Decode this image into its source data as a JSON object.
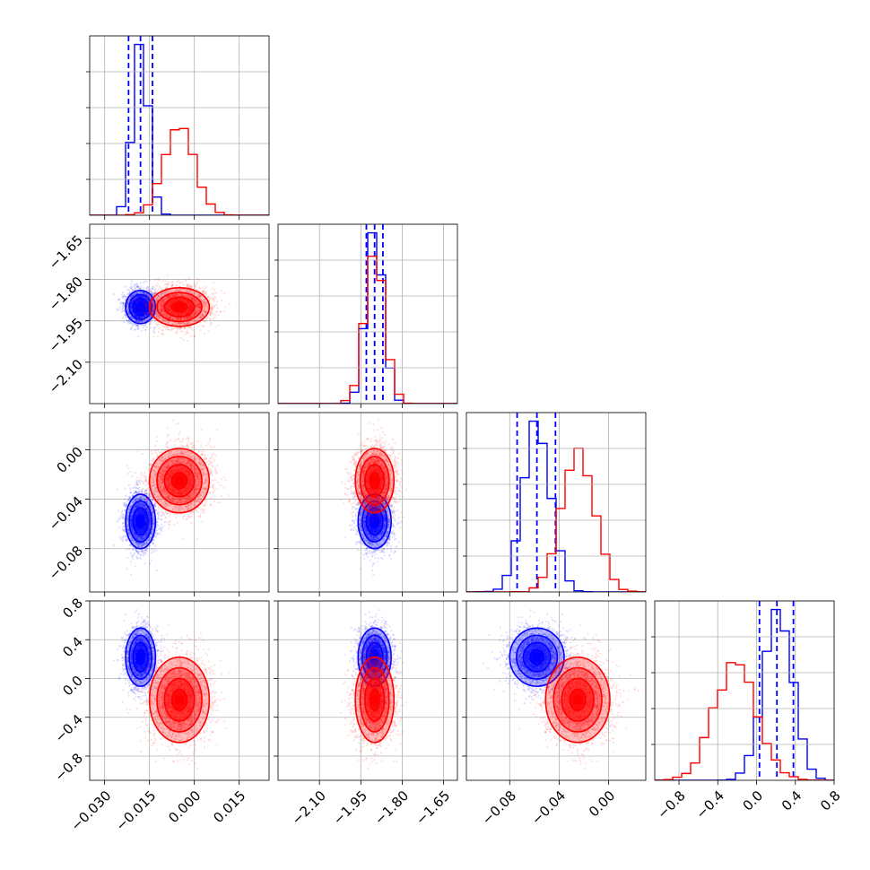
{
  "chart_data": {
    "type": "corner",
    "grid": true,
    "parameters": [
      {
        "range": [
          -0.035,
          0.025
        ],
        "ticks": [
          -0.03,
          -0.015,
          0.0,
          0.015
        ],
        "tick_labels": [
          "−0.030",
          "−0.015",
          "0.000",
          "0.015"
        ]
      },
      {
        "range": [
          -2.25,
          -1.6
        ],
        "ticks": [
          -2.1,
          -1.95,
          -1.8,
          -1.65
        ],
        "tick_labels": [
          "−2.10",
          "−1.95",
          "−1.80",
          "−1.65"
        ]
      },
      {
        "range": [
          -0.115,
          0.03
        ],
        "ticks": [
          -0.08,
          -0.04,
          0.0
        ],
        "tick_labels": [
          "−0.08",
          "−0.04",
          "0.00"
        ]
      },
      {
        "range": [
          -1.05,
          0.8
        ],
        "ticks": [
          -0.8,
          -0.4,
          0.0,
          0.4,
          0.8
        ],
        "tick_labels": [
          "−0.8",
          "−0.4",
          "0.0",
          "0.4",
          "0.8"
        ]
      }
    ],
    "series": [
      {
        "color": "#0000ff",
        "mean": [
          -0.018,
          -1.9,
          -0.058,
          0.22
        ],
        "std": [
          0.0025,
          0.03,
          0.011,
          0.15
        ],
        "corr": [
          [
            1,
            0,
            0,
            0
          ],
          [
            0,
            1,
            0,
            0
          ],
          [
            0,
            0,
            1,
            0
          ],
          [
            0,
            0,
            0,
            1
          ]
        ],
        "quantiles": [
          [
            -0.022,
            -0.018,
            -0.014
          ],
          [
            -1.93,
            -1.9,
            -1.87
          ],
          [
            -0.074,
            -0.058,
            -0.043
          ],
          [
            0.03,
            0.21,
            0.38
          ]
        ]
      },
      {
        "color": "#ff0000",
        "mean": [
          -0.005,
          -1.9,
          -0.025,
          -0.22
        ],
        "std": [
          0.005,
          0.035,
          0.013,
          0.22
        ],
        "corr": [
          [
            1,
            0,
            0,
            0
          ],
          [
            0,
            1,
            0,
            0
          ],
          [
            0,
            0,
            1,
            0
          ],
          [
            0,
            0,
            0,
            1
          ]
        ],
        "quantiles": null
      }
    ]
  }
}
